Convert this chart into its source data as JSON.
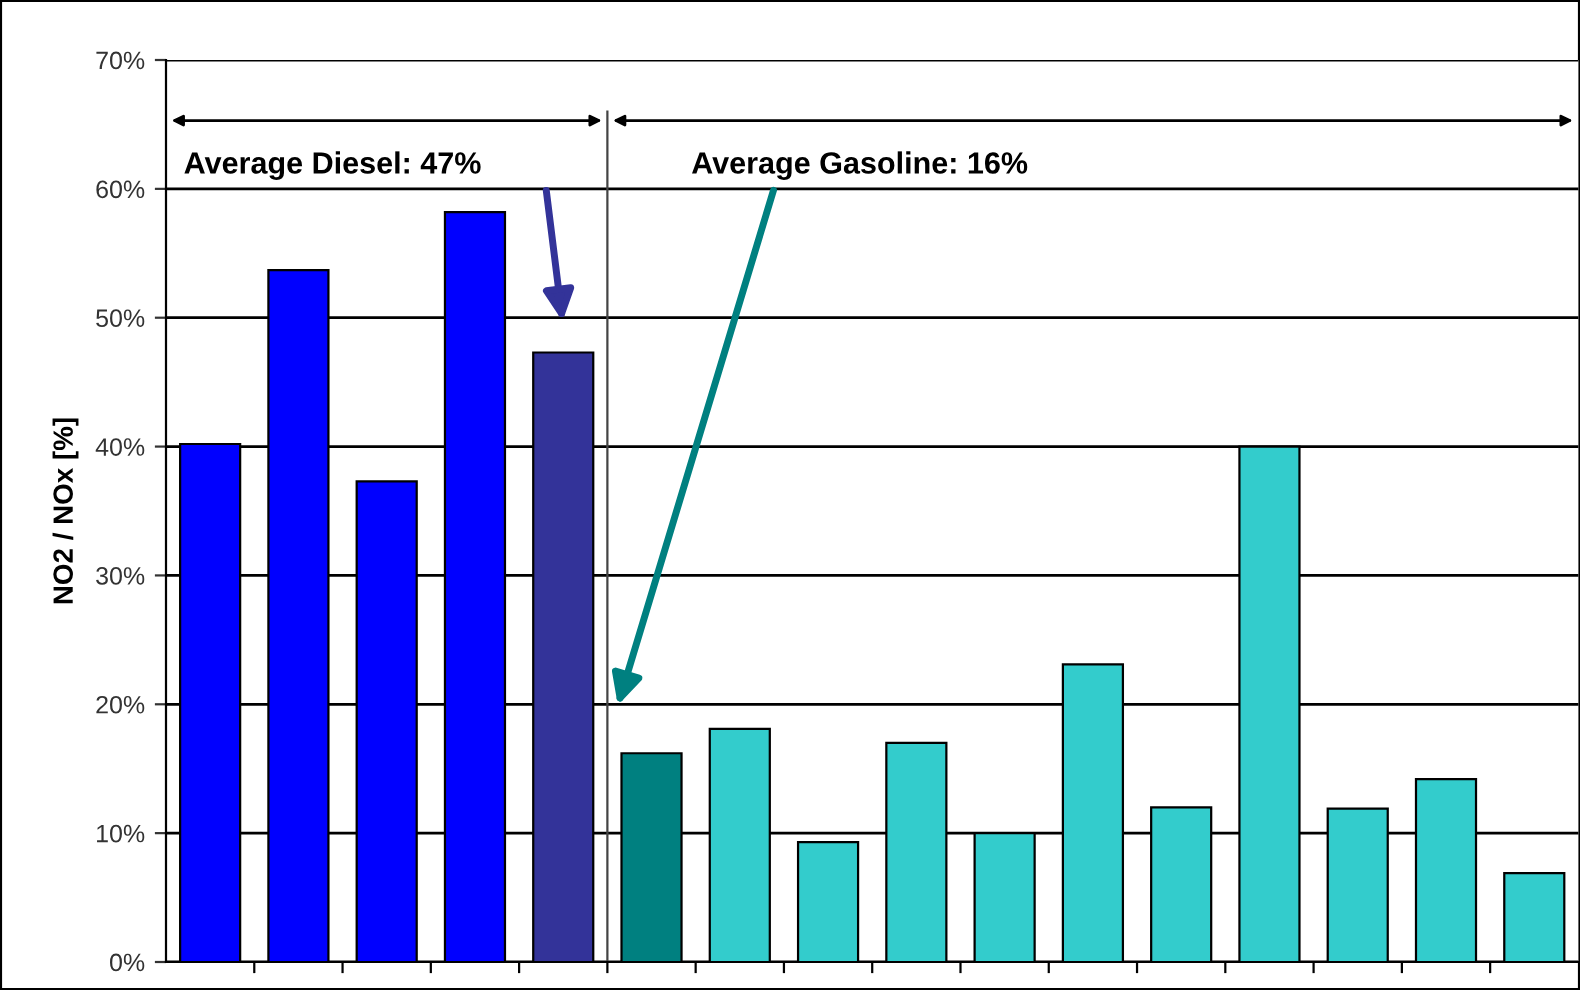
{
  "chart_data": {
    "type": "bar",
    "ylabel": "NO2 / NOx [%]",
    "categories": [
      null,
      null,
      null,
      null,
      null,
      null,
      null,
      null,
      null,
      null,
      null,
      null,
      null,
      null,
      null,
      null
    ],
    "values": [
      40.2,
      53.7,
      37.3,
      58.2,
      47.3,
      16.2,
      18.1,
      9.3,
      17.0,
      10.0,
      23.1,
      12.0,
      40.0,
      11.9,
      14.2,
      6.9
    ],
    "colors": [
      "#0000ff",
      "#0000ff",
      "#0000ff",
      "#0000ff",
      "#333399",
      "#008080",
      "#33cccc",
      "#33cccc",
      "#33cccc",
      "#33cccc",
      "#33cccc",
      "#33cccc",
      "#33cccc",
      "#33cccc",
      "#33cccc",
      "#33cccc"
    ],
    "ylim": [
      0,
      70
    ],
    "yticks": [
      {
        "value": 0,
        "label": "0%"
      },
      {
        "value": 10,
        "label": "10%"
      },
      {
        "value": 20,
        "label": "20%"
      },
      {
        "value": 30,
        "label": "30%"
      },
      {
        "value": 40,
        "label": "40%"
      },
      {
        "value": 50,
        "label": "50%"
      },
      {
        "value": 60,
        "label": "60%"
      },
      {
        "value": 70,
        "label": "70%"
      }
    ],
    "grid": "y",
    "tick_labels": "y",
    "annotations": [
      "Average Diesel: 47%",
      "Average Gasoline: 16%"
    ]
  }
}
